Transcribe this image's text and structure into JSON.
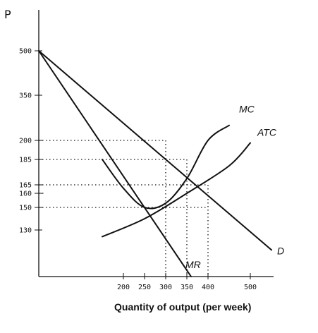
{
  "chart_data": {
    "type": "line",
    "title": "",
    "xlabel": "Quantity of output (per week)",
    "ylabel": "P",
    "xlim": [
      0,
      600
    ],
    "ylim": [
      60,
      500
    ],
    "x_ticks": [
      200,
      250,
      300,
      350,
      400,
      500
    ],
    "x_tick_labels": [
      "200",
      "250",
      "300",
      "350",
      "400",
      "500"
    ],
    "y_ticks": [
      500,
      350,
      200,
      185,
      165,
      160,
      150,
      130
    ],
    "y_tick_labels": [
      "500",
      "350",
      "200",
      "185",
      "165",
      "160",
      "150",
      "130"
    ],
    "series": [
      {
        "name": "D",
        "points": [
          [
            0,
            500
          ],
          [
            550,
            100
          ]
        ]
      },
      {
        "name": "MR",
        "points": [
          [
            0,
            500
          ],
          [
            360,
            60
          ]
        ]
      },
      {
        "name": "MC",
        "points": [
          [
            150,
            185
          ],
          [
            200,
            163
          ],
          [
            250,
            150
          ],
          [
            300,
            153
          ],
          [
            350,
            170
          ],
          [
            400,
            200
          ],
          [
            450,
            250
          ]
        ]
      },
      {
        "name": "ATC",
        "points": [
          [
            150,
            120
          ],
          [
            250,
            140
          ],
          [
            350,
            160
          ],
          [
            450,
            180
          ],
          [
            500,
            198
          ]
        ]
      }
    ],
    "guides": [
      {
        "y": 200,
        "x": 300
      },
      {
        "y": 185,
        "x": 350
      },
      {
        "y": 165,
        "x": 400
      },
      {
        "y": 160,
        "x": 0
      },
      {
        "y": 150,
        "x": 400
      }
    ],
    "vertical_guides": [
      {
        "x": 300,
        "y": 200
      },
      {
        "x": 350,
        "y": 185
      },
      {
        "x": 400,
        "y": 165
      }
    ],
    "grid": false,
    "legend": "none"
  }
}
